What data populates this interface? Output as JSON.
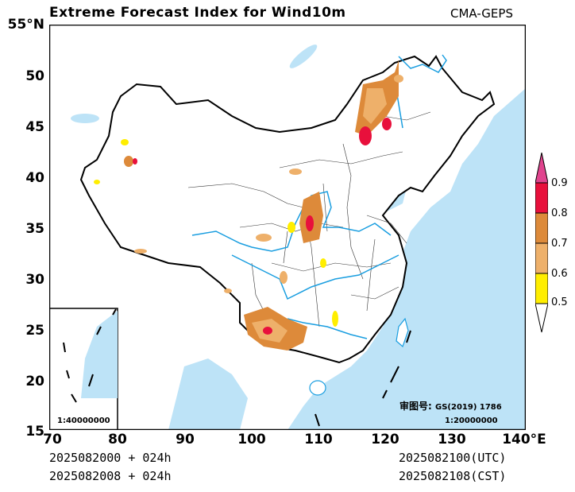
{
  "title": "Extreme Forecast Index for Wind10m",
  "model": "CMA-GEPS",
  "y_axis_ticks": [
    "55°N",
    "50",
    "45",
    "40",
    "35",
    "30",
    "25",
    "20",
    "15"
  ],
  "x_axis_ticks": [
    "70",
    "80",
    "90",
    "100",
    "110",
    "120",
    "130",
    "140°E"
  ],
  "footer": {
    "init_utc": "2025082000 + 024h",
    "init_cst": "2025082008 + 024h",
    "valid_utc": "2025082100(UTC)",
    "valid_cst": "2025082108(CST)"
  },
  "map_approval": {
    "label": "审图号:",
    "number": "GS(2019) 1786",
    "scale": "1:20000000"
  },
  "inset_scale": "1:40000000",
  "colorbar": {
    "labels": [
      "0.9",
      "0.8",
      "0.7",
      "0.6",
      "0.5"
    ],
    "colors": [
      "#e0448e",
      "#e8103c",
      "#dd8a3a",
      "#eeb06a",
      "#ffee00",
      "#ffffff"
    ]
  },
  "colors": {
    "ocean": "#bde3f7",
    "river": "#1a9ee0",
    "border": "#000000",
    "province": "#333333"
  }
}
